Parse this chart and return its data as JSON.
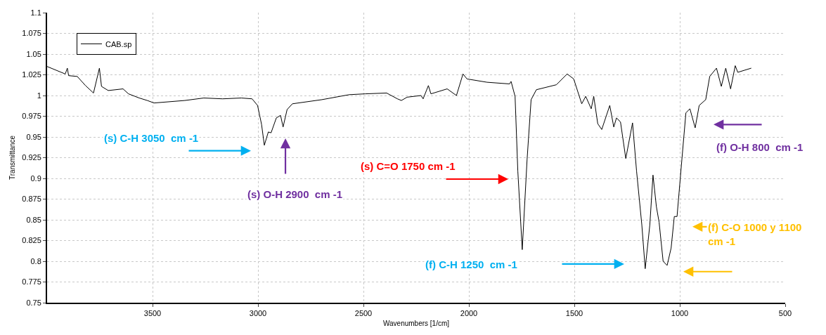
{
  "chart_data": {
    "type": "line",
    "xlabel": "Wavenumbers [1/cm]",
    "ylabel": "Transmittance",
    "xlim": [
      4000,
      500
    ],
    "xticks": [
      3500,
      3000,
      2500,
      2000,
      1500,
      1000,
      500
    ],
    "ylim": [
      0.75,
      1.1
    ],
    "yticks": [
      0.75,
      0.775,
      0.8,
      0.825,
      0.85,
      0.875,
      0.9,
      0.925,
      0.95,
      0.975,
      1,
      1.025,
      1.05,
      1.075,
      1.1
    ],
    "grid": true,
    "legend": "top left",
    "marker": "none",
    "line_style": "solid",
    "series": [
      {
        "name": "CAB.sp",
        "color": "#000000",
        "x": [
          4000,
          3914,
          3904,
          3898,
          3857,
          3818,
          3780,
          3752,
          3742,
          3710,
          3640,
          3614,
          3563,
          3525,
          3493,
          3347,
          3257,
          3168,
          3079,
          3028,
          3002,
          2983,
          2970,
          2951,
          2938,
          2913,
          2893,
          2881,
          2862,
          2837,
          2697,
          2568,
          2492,
          2390,
          2339,
          2320,
          2293,
          2227,
          2217,
          2192,
          2180,
          2103,
          2059,
          2028,
          2009,
          1914,
          1807,
          1800,
          1781,
          1768,
          1747,
          1724,
          1705,
          1680,
          1585,
          1534,
          1503,
          1465,
          1446,
          1420,
          1408,
          1389,
          1370,
          1332,
          1313,
          1300,
          1281,
          1256,
          1224,
          1205,
          1180,
          1164,
          1142,
          1127,
          1111,
          1098,
          1079,
          1060,
          1041,
          1026,
          1013,
          990,
          971,
          952,
          927,
          908,
          877,
          858,
          826,
          803,
          782,
          759,
          737,
          725,
          661
        ],
        "values": [
          1.035,
          1.026,
          1.033,
          1.024,
          1.023,
          1.012,
          1.003,
          1.033,
          1.011,
          1.006,
          1.008,
          1.002,
          0.997,
          0.994,
          0.991,
          0.994,
          0.997,
          0.996,
          0.997,
          0.996,
          0.988,
          0.965,
          0.94,
          0.956,
          0.955,
          0.973,
          0.976,
          0.962,
          0.983,
          0.99,
          0.995,
          1.001,
          1.002,
          1.003,
          0.996,
          0.994,
          0.998,
          1.0,
          0.996,
          1.012,
          1.002,
          1.008,
          1.0,
          1.026,
          1.02,
          1.016,
          1.014,
          1.017,
          0.999,
          0.909,
          0.814,
          0.923,
          0.995,
          1.007,
          1.013,
          1.026,
          1.02,
          0.99,
          0.999,
          0.984,
          0.999,
          0.966,
          0.959,
          0.988,
          0.962,
          0.973,
          0.968,
          0.924,
          0.967,
          0.909,
          0.844,
          0.791,
          0.844,
          0.904,
          0.866,
          0.847,
          0.8,
          0.795,
          0.816,
          0.854,
          0.854,
          0.923,
          0.979,
          0.984,
          0.961,
          0.988,
          0.995,
          1.023,
          1.033,
          1.011,
          1.033,
          1.008,
          1.036,
          1.028,
          1.033
        ]
      }
    ],
    "annotations": [
      "(s) C-H 3050  cm -1",
      "(s) O-H 2900  cm -1",
      "(s) C=O 1750 cm -1",
      "(f) C-H 1250  cm -1",
      "(f) C-O 1000 y 1100\ncm -1",
      "(f) O-H 800  cm -1"
    ]
  }
}
